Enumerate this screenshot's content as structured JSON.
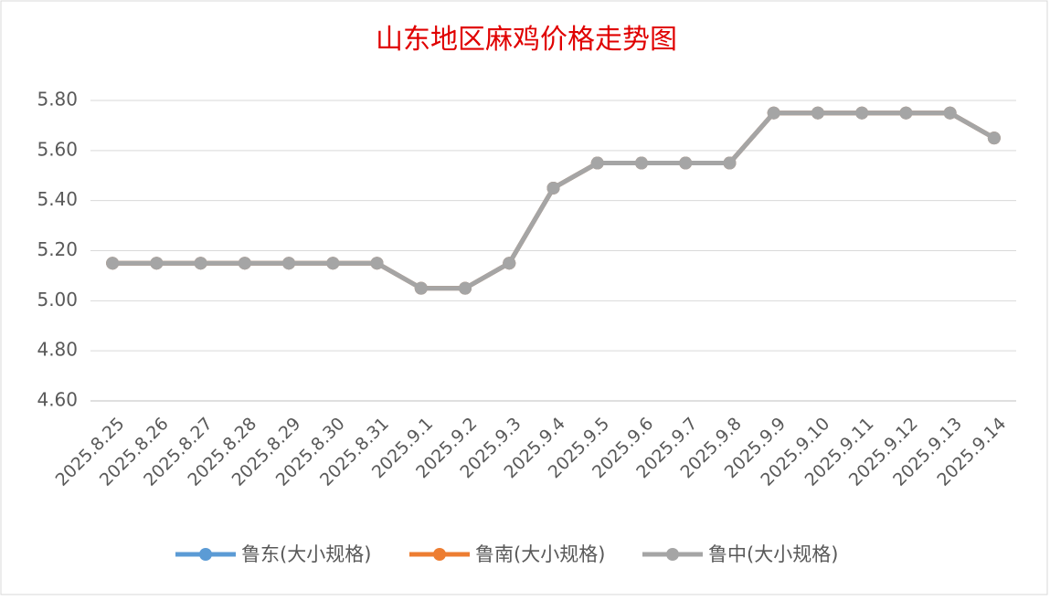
{
  "chart_data": {
    "type": "line",
    "title": "山东地区麻鸡价格走势图",
    "categories": [
      "2025.8.25",
      "2025.8.26",
      "2025.8.27",
      "2025.8.28",
      "2025.8.29",
      "2025.8.30",
      "2025.8.31",
      "2025.9.1",
      "2025.9.2",
      "2025.9.3",
      "2025.9.4",
      "2025.9.5",
      "2025.9.6",
      "2025.9.7",
      "2025.9.8",
      "2025.9.9",
      "2025.9.10",
      "2025.9.11",
      "2025.9.12",
      "2025.9.13",
      "2025.9.14"
    ],
    "series": [
      {
        "name": "鲁东(大小规格)",
        "color": "#5b9bd5",
        "values": [
          5.15,
          5.15,
          5.15,
          5.15,
          5.15,
          5.15,
          5.15,
          5.05,
          5.05,
          5.15,
          5.45,
          5.55,
          5.55,
          5.55,
          5.55,
          5.75,
          5.75,
          5.75,
          5.75,
          5.75,
          5.65
        ]
      },
      {
        "name": "鲁南(大小规格)",
        "color": "#ed7d31",
        "values": [
          5.15,
          5.15,
          5.15,
          5.15,
          5.15,
          5.15,
          5.15,
          5.05,
          5.05,
          5.15,
          5.45,
          5.55,
          5.55,
          5.55,
          5.55,
          5.75,
          5.75,
          5.75,
          5.75,
          5.75,
          5.65
        ]
      },
      {
        "name": "鲁中(大小规格)",
        "color": "#a5a5a5",
        "values": [
          5.15,
          5.15,
          5.15,
          5.15,
          5.15,
          5.15,
          5.15,
          5.05,
          5.05,
          5.15,
          5.45,
          5.55,
          5.55,
          5.55,
          5.55,
          5.75,
          5.75,
          5.75,
          5.75,
          5.75,
          5.65
        ]
      }
    ],
    "ylim": [
      4.6,
      5.8
    ],
    "yticks": [
      {
        "value": 4.6,
        "label": "4.60"
      },
      {
        "value": 4.8,
        "label": "4.80"
      },
      {
        "value": 5.0,
        "label": "5.00"
      },
      {
        "value": 5.2,
        "label": "5.20"
      },
      {
        "value": 5.4,
        "label": "5.40"
      },
      {
        "value": 5.6,
        "label": "5.60"
      },
      {
        "value": 5.8,
        "label": "5.80"
      }
    ],
    "grid": true,
    "legend": "bottom"
  }
}
